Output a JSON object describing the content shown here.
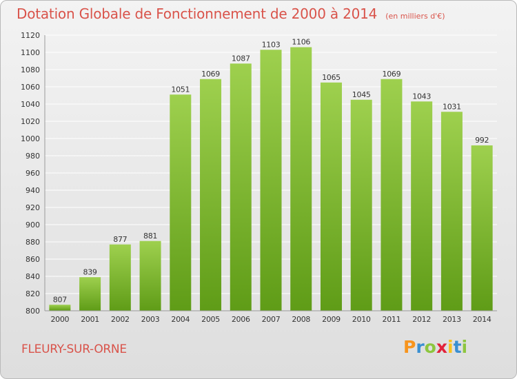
{
  "header": {
    "title": "Dotation Globale de Fonctionnement de 2000 à 2014",
    "unit": "(en milliers d'€)"
  },
  "footer": {
    "commune": "FLEURY-SUR-ORNE",
    "logo_text": "Proxiti",
    "logo_colors": [
      "#f7941d",
      "#3a8fd1",
      "#8dc63f",
      "#e2223a",
      "#f7c21d",
      "#3a8fd1",
      "#8dc63f"
    ]
  },
  "colors": {
    "title": "#d9534a",
    "bar_top": "#9ed04e",
    "bar_bottom": "#5f9c17",
    "grid": "#ffffff",
    "axis_text": "#333333"
  },
  "chart_data": {
    "type": "bar",
    "categories": [
      "2000",
      "2001",
      "2002",
      "2003",
      "2004",
      "2005",
      "2006",
      "2007",
      "2008",
      "2009",
      "2010",
      "2011",
      "2012",
      "2013",
      "2014"
    ],
    "values": [
      807,
      839,
      877,
      881,
      1051,
      1069,
      1087,
      1103,
      1106,
      1065,
      1045,
      1069,
      1043,
      1031,
      992
    ],
    "yticks": [
      800,
      820,
      840,
      860,
      880,
      900,
      920,
      940,
      960,
      980,
      1000,
      1020,
      1040,
      1060,
      1080,
      1100,
      1120
    ],
    "ylim": [
      800,
      1120
    ],
    "grid": true,
    "legend": false
  }
}
